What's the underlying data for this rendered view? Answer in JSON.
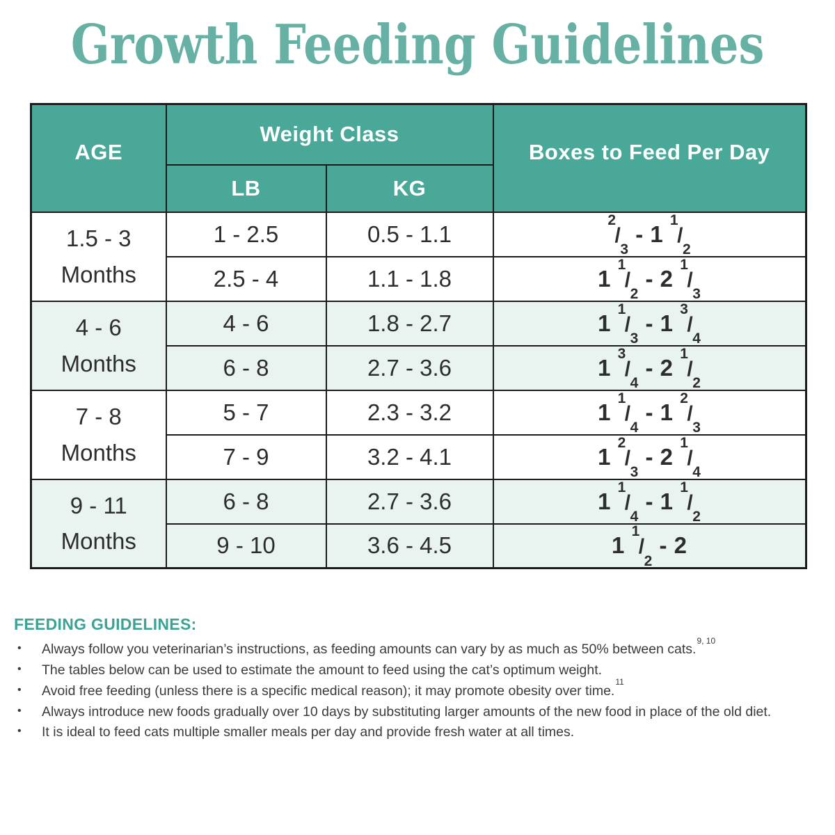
{
  "page": {
    "title": "Growth Feeding Guidelines"
  },
  "colors": {
    "title": "#66B1A3",
    "header_bg": "#4AA899",
    "header_text": "#FFFFFF",
    "row_alt_bg": "#E9F3F0",
    "border": "#1B1B1B",
    "text": "#2D2D2D",
    "guidelines_heading": "#3CA394"
  },
  "table": {
    "headers": {
      "age": "AGE",
      "weight_class": "Weight Class",
      "lb": "LB",
      "kg": "KG",
      "boxes": "Boxes to Feed Per Day"
    },
    "groups": [
      {
        "age": "1.5 - 3\nMonths",
        "rows": [
          {
            "lb": "1 - 2.5",
            "kg": "0.5 - 1.1",
            "boxes": "{2/3} - 1 {1/2}"
          },
          {
            "lb": "2.5 - 4",
            "kg": "1.1 - 1.8",
            "boxes": "1 {1/2} - 2 {1/3}"
          }
        ]
      },
      {
        "age": "4 - 6\nMonths",
        "rows": [
          {
            "lb": "4 - 6",
            "kg": "1.8 - 2.7",
            "boxes": "1 {1/3} - 1 {3/4}"
          },
          {
            "lb": "6 - 8",
            "kg": "2.7 - 3.6",
            "boxes": "1 {3/4} - 2 {1/2}"
          }
        ]
      },
      {
        "age": "7 - 8\nMonths",
        "rows": [
          {
            "lb": "5 - 7",
            "kg": "2.3 - 3.2",
            "boxes": "1 {1/4} - 1 {2/3}"
          },
          {
            "lb": "7 - 9",
            "kg": "3.2 - 4.1",
            "boxes": "1 {2/3} - 2 {1/4}"
          }
        ]
      },
      {
        "age": "9 - 11\nMonths",
        "rows": [
          {
            "lb": "6 - 8",
            "kg": "2.7 - 3.6",
            "boxes": "1 {1/4} - 1 {1/2}"
          },
          {
            "lb": "9 - 10",
            "kg": "3.6 - 4.5",
            "boxes": "1 {1/2} - 2"
          }
        ]
      }
    ]
  },
  "guidelines": {
    "heading": "FEEDING GUIDELINES:",
    "bullets": [
      {
        "text": "Always follow you veterinarian’s instructions, as feeding amounts can vary by as much as 50% between cats.",
        "sup": "9, 10"
      },
      {
        "text": "The tables below can be used to estimate the amount to feed using the cat’s optimum weight.",
        "sup": ""
      },
      {
        "text": "Avoid free feeding (unless there is a specific medical reason); it may promote obesity over time.",
        "sup": "11"
      },
      {
        "text": "Always introduce new foods gradually over 10 days by substituting larger amounts of the new food in place of the old diet.",
        "sup": ""
      },
      {
        "text": "It is ideal to feed cats multiple smaller meals per day and provide fresh water at all times.",
        "sup": ""
      }
    ]
  }
}
